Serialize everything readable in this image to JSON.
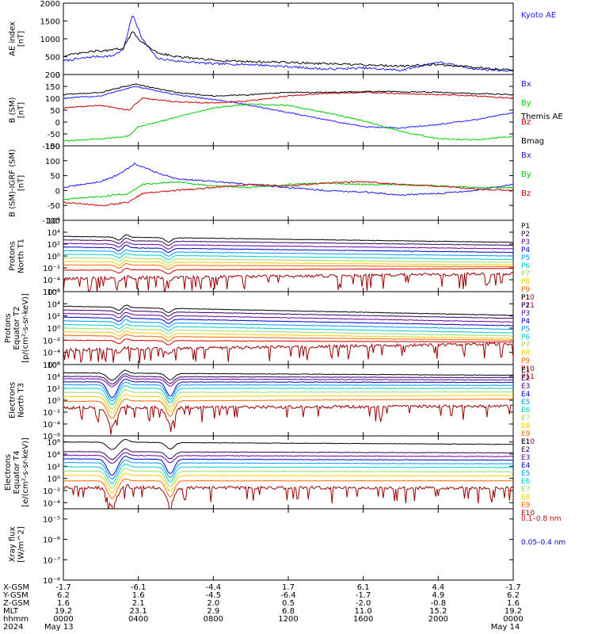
{
  "chart_data": [
    {
      "type": "line",
      "ylabel": [
        "AE index",
        "[nT]"
      ],
      "ylim": [
        0,
        2000
      ],
      "log": false,
      "yticks": [
        "0",
        "500",
        "1000",
        "1500",
        "2000"
      ],
      "ytick_values": [
        0,
        500,
        1000,
        1500,
        2000
      ],
      "legend_placement": "right",
      "series": [
        {
          "name": "Kyoto AE",
          "color": "#1a1aff",
          "label_row": 0,
          "t": [
            0,
            1.6,
            2.6,
            3.2,
            3.7,
            4.2,
            5.0,
            6.0,
            8.0,
            10,
            12,
            14,
            16,
            18,
            20,
            22,
            24
          ],
          "values": [
            380,
            500,
            520,
            700,
            1700,
            1000,
            450,
            380,
            300,
            280,
            220,
            150,
            180,
            120,
            350,
            150,
            100
          ]
        },
        {
          "name": "Themis AE",
          "color": "#000000",
          "label_row": 2,
          "t": [
            0,
            1.6,
            2.6,
            3.2,
            3.7,
            4.2,
            5.0,
            6.0,
            8.0,
            10,
            12,
            14,
            16,
            18,
            20,
            22,
            24
          ],
          "values": [
            520,
            650,
            680,
            750,
            1200,
            900,
            620,
            500,
            400,
            360,
            340,
            300,
            270,
            240,
            280,
            200,
            120
          ]
        }
      ]
    },
    {
      "type": "line",
      "ylabel": [
        "B (SM)",
        "[nT]"
      ],
      "ylim": [
        -100,
        200
      ],
      "log": false,
      "yticks": [
        "-100",
        "-50",
        "0",
        "50",
        "100",
        "150",
        "200"
      ],
      "ytick_values": [
        -100,
        -50,
        0,
        50,
        100,
        150,
        200
      ],
      "series": [
        {
          "name": "Bx",
          "color": "#1a1aff",
          "label_row": 0,
          "t": [
            0,
            2,
            3.8,
            6,
            8,
            10,
            12,
            14,
            16,
            18,
            20,
            22,
            24
          ],
          "values": [
            100,
            110,
            150,
            115,
            95,
            70,
            40,
            10,
            -20,
            -25,
            -10,
            10,
            40
          ]
        },
        {
          "name": "By",
          "color": "#00cc00",
          "label_row": 1,
          "t": [
            0,
            2,
            3.5,
            4.0,
            6,
            8,
            10,
            12,
            14,
            16,
            18,
            20,
            22,
            24
          ],
          "values": [
            -80,
            -70,
            -60,
            -20,
            20,
            60,
            75,
            70,
            40,
            5,
            -40,
            -70,
            -75,
            -60
          ]
        },
        {
          "name": "Bz",
          "color": "#cc0000",
          "label_row": 2,
          "t": [
            0,
            2,
            3.5,
            4.2,
            6,
            8,
            10,
            12,
            14,
            16,
            18,
            20,
            22,
            24
          ],
          "values": [
            60,
            70,
            50,
            100,
            85,
            80,
            90,
            110,
            120,
            125,
            120,
            115,
            110,
            100
          ]
        },
        {
          "name": "Bmag",
          "color": "#000000",
          "label_row": 3,
          "t": [
            0,
            2,
            3.8,
            6,
            8,
            10,
            12,
            14,
            16,
            18,
            20,
            22,
            24
          ],
          "values": [
            115,
            125,
            160,
            125,
            110,
            115,
            125,
            125,
            128,
            128,
            125,
            120,
            115
          ]
        }
      ]
    },
    {
      "type": "line",
      "ylabel": [
        "B (SM)-IGRF (SM)",
        "[nT]"
      ],
      "ylim": [
        -100,
        150
      ],
      "log": false,
      "yticks": [
        "-100",
        "-50",
        "0",
        "50",
        "100",
        "150"
      ],
      "ytick_values": [
        -100,
        -50,
        0,
        50,
        100,
        150
      ],
      "series": [
        {
          "name": "Bx",
          "color": "#1a1aff",
          "label_row": 0,
          "t": [
            0,
            2,
            3.0,
            3.8,
            5,
            6,
            8,
            10,
            12,
            14,
            16,
            18,
            20,
            22,
            24
          ],
          "values": [
            10,
            30,
            55,
            90,
            60,
            40,
            30,
            20,
            10,
            0,
            -5,
            -15,
            -10,
            0,
            20
          ]
        },
        {
          "name": "By",
          "color": "#00cc00",
          "label_row": 1,
          "t": [
            0,
            2,
            3.5,
            4.2,
            6,
            8,
            10,
            12,
            14,
            16,
            18,
            20,
            22,
            24
          ],
          "values": [
            -30,
            -20,
            -10,
            20,
            30,
            15,
            10,
            20,
            25,
            20,
            20,
            15,
            10,
            10
          ]
        },
        {
          "name": "Bz",
          "color": "#cc0000",
          "label_row": 2,
          "t": [
            0,
            2,
            3.5,
            4.2,
            6,
            8,
            10,
            12,
            14,
            16,
            18,
            20,
            22,
            24
          ],
          "values": [
            -40,
            -50,
            -40,
            -10,
            0,
            10,
            20,
            15,
            25,
            30,
            20,
            15,
            5,
            0
          ]
        }
      ]
    },
    {
      "type": "line",
      "ylabel": [
        "Protons",
        "North T1"
      ],
      "ylim": [
        -6,
        6
      ],
      "log": true,
      "yticks": [
        "10⁻⁶",
        "10⁻⁴",
        "10⁻²",
        "10⁰",
        "10²",
        "10⁴",
        "10⁶"
      ],
      "ytick_values": [
        -6,
        -4,
        -2,
        0,
        2,
        4,
        6
      ],
      "series": [
        {
          "name": "P1",
          "color": "#000000",
          "label_row": 0,
          "base": 3.3,
          "end": 2.3
        },
        {
          "name": "P2",
          "color": "#330066",
          "label_row": 1,
          "base": 2.7,
          "end": 1.8
        },
        {
          "name": "P3",
          "color": "#660099",
          "label_row": 2,
          "base": 2.1,
          "end": 1.2
        },
        {
          "name": "P4",
          "color": "#0000cc",
          "label_row": 3,
          "base": 1.5,
          "end": 0.6
        },
        {
          "name": "P5",
          "color": "#0099ff",
          "label_row": 4,
          "base": 0.9,
          "end": 0.0
        },
        {
          "name": "P6",
          "color": "#00cccc",
          "label_row": 5,
          "base": 0.3,
          "end": -0.6
        },
        {
          "name": "P7",
          "color": "#99dd66",
          "label_row": 6,
          "base": -0.3,
          "end": -1.1
        },
        {
          "name": "P8",
          "color": "#ffcc00",
          "label_row": 7,
          "base": -0.9,
          "end": -1.5
        },
        {
          "name": "P9",
          "color": "#ff6600",
          "label_row": 8,
          "base": -1.5,
          "end": -1.8
        },
        {
          "name": "P10",
          "color": "#cc0000",
          "label_row": 9,
          "base": -2.4,
          "end": -2.1
        },
        {
          "name": "P11",
          "color": "#990000",
          "label_row": 10,
          "base": -3.8,
          "end": -3.0,
          "noisy": true
        }
      ]
    },
    {
      "type": "line",
      "ylabel": [
        "Protons",
        "Equator T2",
        "[p/(cm²-s-sr-keV)]"
      ],
      "ylim": [
        -6,
        6
      ],
      "log": true,
      "yticks": [
        "10⁻⁶",
        "10⁻⁴",
        "10⁻²",
        "10⁰",
        "10²",
        "10⁴",
        "10⁶"
      ],
      "ytick_values": [
        -6,
        -4,
        -2,
        0,
        2,
        4,
        6
      ],
      "series": [
        {
          "name": "P1",
          "color": "#000000",
          "label_row": 0,
          "base": 3.6,
          "end": 2.1
        },
        {
          "name": "P2",
          "color": "#330066",
          "label_row": 1,
          "base": 3.0,
          "end": 1.6
        },
        {
          "name": "P3",
          "color": "#660099",
          "label_row": 2,
          "base": 2.4,
          "end": 1.0
        },
        {
          "name": "P4",
          "color": "#0000cc",
          "label_row": 3,
          "base": 1.8,
          "end": 0.4
        },
        {
          "name": "P5",
          "color": "#0099ff",
          "label_row": 4,
          "base": 1.2,
          "end": -0.2
        },
        {
          "name": "P6",
          "color": "#00cccc",
          "label_row": 5,
          "base": 0.6,
          "end": -0.8
        },
        {
          "name": "P7",
          "color": "#99dd66",
          "label_row": 6,
          "base": 0.0,
          "end": -1.3
        },
        {
          "name": "P8",
          "color": "#ffcc00",
          "label_row": 7,
          "base": -0.6,
          "end": -1.7
        },
        {
          "name": "P9",
          "color": "#ff6600",
          "label_row": 8,
          "base": -1.2,
          "end": -2.0
        },
        {
          "name": "P10",
          "color": "#cc0000",
          "label_row": 9,
          "base": -2.0,
          "end": -2.3
        },
        {
          "name": "P11",
          "color": "#990000",
          "label_row": 10,
          "base": -3.6,
          "end": -2.6,
          "noisy": true
        }
      ]
    },
    {
      "type": "line",
      "ylabel": [
        "Electrons",
        "North T3"
      ],
      "ylim": [
        -6,
        6
      ],
      "log": true,
      "yticks": [
        "10⁻⁶",
        "10⁻⁴",
        "10⁻²",
        "10⁰",
        "10²",
        "10⁴",
        "10⁶"
      ],
      "ytick_values": [
        -6,
        -4,
        -2,
        0,
        2,
        4,
        6
      ],
      "series": [
        {
          "name": "E1",
          "color": "#000000",
          "label_row": 0,
          "base": 4.6,
          "end": 4.2
        },
        {
          "name": "E2",
          "color": "#330066",
          "label_row": 1,
          "base": 4.0,
          "end": 3.8
        },
        {
          "name": "E3",
          "color": "#660099",
          "label_row": 2,
          "base": 3.6,
          "end": 3.4
        },
        {
          "name": "E4",
          "color": "#0000cc",
          "label_row": 3,
          "base": 3.1,
          "end": 3.0
        },
        {
          "name": "E5",
          "color": "#0099ff",
          "label_row": 4,
          "base": 2.6,
          "end": 2.5
        },
        {
          "name": "E6",
          "color": "#00cccc",
          "label_row": 5,
          "base": 2.0,
          "end": 2.0
        },
        {
          "name": "E7",
          "color": "#99dd66",
          "label_row": 6,
          "base": 1.3,
          "end": 1.4
        },
        {
          "name": "E8",
          "color": "#ffcc00",
          "label_row": 7,
          "base": 0.6,
          "end": 0.8
        },
        {
          "name": "E9",
          "color": "#ff6600",
          "label_row": 8,
          "base": -0.2,
          "end": 0.2
        },
        {
          "name": "E10",
          "color": "#990000",
          "label_row": 9,
          "base": -1.3,
          "end": -1.0,
          "noisy": true
        }
      ]
    },
    {
      "type": "line",
      "ylabel": [
        "Electrons",
        "Equator T4",
        "[e/(cm²-s-sr-keV)]"
      ],
      "ylim": [
        -5,
        7
      ],
      "log": true,
      "yticks": [
        "10⁻⁴",
        "10⁻²",
        "10⁰",
        "10²",
        "10⁴",
        "10⁶"
      ],
      "ytick_values": [
        -4,
        -2,
        0,
        2,
        4,
        6
      ],
      "series": [
        {
          "name": "E1",
          "color": "#000000",
          "label_row": 0,
          "base": 6.0,
          "end": 5.6
        },
        {
          "name": "E2",
          "color": "#330066",
          "label_row": 1,
          "base": 4.4,
          "end": 4.2
        },
        {
          "name": "E3",
          "color": "#660099",
          "label_row": 2,
          "base": 3.8,
          "end": 3.6
        },
        {
          "name": "E4",
          "color": "#0000cc",
          "label_row": 3,
          "base": 3.2,
          "end": 3.0
        },
        {
          "name": "E5",
          "color": "#0099ff",
          "label_row": 4,
          "base": 2.6,
          "end": 2.4
        },
        {
          "name": "E6",
          "color": "#00cccc",
          "label_row": 5,
          "base": 1.9,
          "end": 1.8
        },
        {
          "name": "E7",
          "color": "#99dd66",
          "label_row": 6,
          "base": 1.2,
          "end": 1.1
        },
        {
          "name": "E8",
          "color": "#ffcc00",
          "label_row": 7,
          "base": 0.5,
          "end": 0.4
        },
        {
          "name": "E9",
          "color": "#ff6600",
          "label_row": 8,
          "base": -0.4,
          "end": -0.4
        },
        {
          "name": "E10",
          "color": "#990000",
          "label_row": 9,
          "base": -1.5,
          "end": -1.6,
          "noisy": true
        }
      ]
    },
    {
      "type": "line",
      "ylabel": [
        "Xray flux",
        "[W/m^2]"
      ],
      "ylim": [
        -8,
        -4.5
      ],
      "log": true,
      "yticks": [
        "10⁻⁸",
        "10⁻⁷",
        "10⁻⁶",
        "10⁻⁵"
      ],
      "ytick_values": [
        -8,
        -7,
        -6,
        -5
      ],
      "series": [
        {
          "name": "0.1–0.8 nm",
          "color": "#cc0000",
          "label_row": 0,
          "t": [
            0,
            1,
            2,
            3,
            4,
            5,
            6,
            7,
            8,
            9,
            10,
            11,
            12,
            13,
            14,
            15,
            16,
            17,
            18,
            19,
            20,
            21,
            22,
            23,
            24
          ],
          "values": [
            -5.7,
            -5.6,
            -5.5,
            -5.5,
            -5.4,
            -5.4,
            -5.4,
            -5.3,
            -5.3,
            -4.9,
            -4.8,
            -5.0,
            -5.2,
            -5.1,
            -5.2,
            -5.3,
            -5.4,
            -5.5,
            -5.6,
            -5.6,
            -5.6,
            -5.5,
            -5.6,
            -5.7,
            -5.7
          ]
        },
        {
          "name": "0.05–0.4 nm",
          "color": "#0000cc",
          "label_row": 2,
          "t": [
            0,
            1,
            2,
            3,
            4,
            5,
            6,
            7,
            8,
            9,
            10,
            11,
            12,
            13,
            14,
            15,
            16,
            17,
            18,
            19,
            20,
            21,
            22,
            23,
            24
          ],
          "values": [
            -7.0,
            -6.8,
            -6.9,
            -6.8,
            -6.8,
            -6.9,
            -6.8,
            -6.6,
            -6.2,
            -5.6,
            -5.8,
            -6.1,
            -6.4,
            -6.3,
            -6.6,
            -6.8,
            -6.9,
            -6.6,
            -7.0,
            -7.1,
            -7.1,
            -7.0,
            -7.2,
            -7.4,
            -7.6
          ]
        }
      ]
    }
  ],
  "x_axis": {
    "hours": [
      0,
      4,
      8,
      12,
      16,
      20,
      24
    ],
    "rows": [
      {
        "label": "X-GSM",
        "values": [
          "-1.7",
          "-6.1",
          "-4.4",
          "1.7",
          "6.1",
          "4.4",
          "-1.7"
        ]
      },
      {
        "label": "Y-GSM",
        "values": [
          "6.2",
          "1.6",
          "-4.5",
          "-6.4",
          "-1.7",
          "4.9",
          "6.2"
        ]
      },
      {
        "label": "Z-GSM",
        "values": [
          "1.6",
          "2.1",
          "2.0",
          "0.5",
          "-2.0",
          "-0.8",
          "1.6"
        ]
      },
      {
        "label": "MLT",
        "values": [
          "19.2",
          "23.1",
          "2.9",
          "6.8",
          "11.0",
          "15.2",
          "19.2"
        ]
      },
      {
        "label": "hhmm",
        "values": [
          "0000",
          "0400",
          "0800",
          "1200",
          "1600",
          "2000",
          "0000"
        ]
      },
      {
        "label": "2024",
        "values": [
          "May 13",
          "",
          "",
          "",
          "",
          "",
          "May 14"
        ]
      }
    ]
  }
}
